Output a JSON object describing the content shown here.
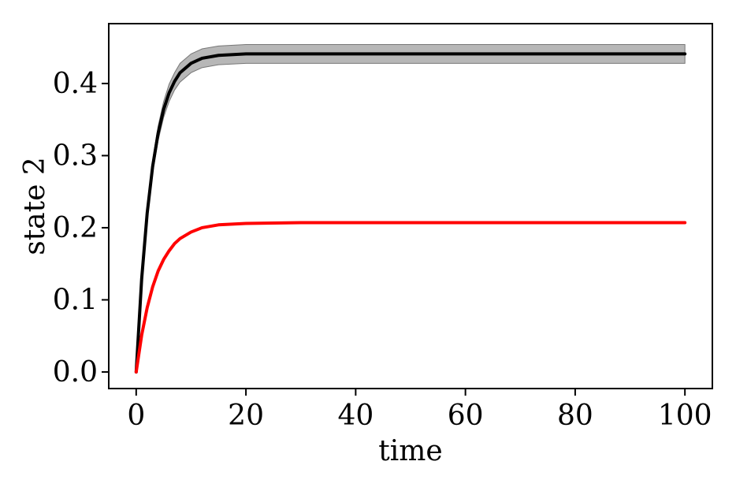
{
  "chart_data": {
    "type": "line",
    "title": "",
    "xlabel": "time",
    "ylabel": "state 2",
    "xlim": [
      -5,
      105
    ],
    "ylim": [
      -0.023,
      0.483
    ],
    "xticks": [
      0,
      20,
      40,
      60,
      80,
      100
    ],
    "xtick_labels": [
      "0",
      "20",
      "40",
      "60",
      "80",
      "100"
    ],
    "yticks": [
      0.0,
      0.1,
      0.2,
      0.3,
      0.4
    ],
    "ytick_labels": [
      "0.0",
      "0.1",
      "0.2",
      "0.3",
      "0.4"
    ],
    "grid": false,
    "legend": "none",
    "series": [
      {
        "color": "#000000",
        "x": [
          0,
          1,
          2,
          3,
          4,
          5,
          6,
          7,
          8,
          10,
          12,
          15,
          20,
          30,
          40,
          60,
          80,
          100
        ],
        "y": [
          0.0,
          0.129,
          0.22,
          0.285,
          0.331,
          0.364,
          0.387,
          0.403,
          0.415,
          0.428,
          0.435,
          0.439,
          0.441,
          0.441,
          0.441,
          0.441,
          0.441,
          0.441
        ],
        "band": {
          "color": "#999999",
          "lower": [
            0.0,
            0.125,
            0.213,
            0.276,
            0.321,
            0.353,
            0.375,
            0.391,
            0.402,
            0.415,
            0.422,
            0.426,
            0.428,
            0.428,
            0.428,
            0.428,
            0.428,
            0.428
          ],
          "upper": [
            0.0,
            0.133,
            0.227,
            0.294,
            0.341,
            0.375,
            0.399,
            0.415,
            0.428,
            0.441,
            0.448,
            0.452,
            0.454,
            0.454,
            0.454,
            0.454,
            0.454,
            0.454
          ]
        }
      },
      {
        "color": "#ff0000",
        "x": [
          0,
          1,
          2,
          3,
          4,
          5,
          6,
          7,
          8,
          10,
          12,
          15,
          20,
          30,
          40,
          60,
          80,
          100
        ],
        "y": [
          0.0,
          0.051,
          0.089,
          0.118,
          0.14,
          0.156,
          0.168,
          0.178,
          0.185,
          0.194,
          0.2,
          0.204,
          0.206,
          0.207,
          0.207,
          0.207,
          0.207,
          0.207
        ]
      }
    ]
  }
}
